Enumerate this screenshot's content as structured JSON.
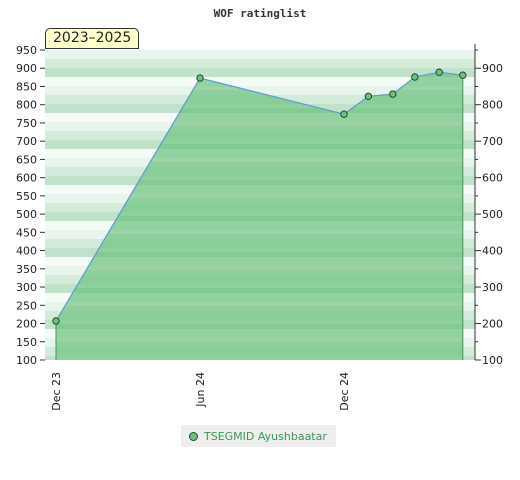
{
  "chart_data": {
    "type": "area",
    "title": "WOF ratinglist",
    "period_label": "2023–2025",
    "x_tick_labels": [
      "Dec 23",
      "Jun 24",
      "Dec 24"
    ],
    "ylim": [
      100,
      950
    ],
    "y_ticks_left": [
      100,
      150,
      200,
      250,
      300,
      350,
      400,
      450,
      500,
      550,
      600,
      650,
      700,
      750,
      800,
      850,
      900,
      950
    ],
    "y_ticks_right": [
      100,
      200,
      300,
      400,
      500,
      600,
      700,
      800,
      900
    ],
    "series": [
      {
        "name": "TSEGMID Ayushbaatar",
        "x": [
          "2023-12-01",
          "2024-06-01",
          "2024-12-01",
          "2025-01-01",
          "2025-02-01",
          "2025-03-01",
          "2025-04-01",
          "2025-05-01"
        ],
        "values": [
          207,
          873,
          774,
          823,
          829,
          876,
          889,
          881
        ]
      }
    ],
    "legend_position": "bottom-center",
    "grid": "banded",
    "colors": {
      "line": "#5b9bd5",
      "fill": "#6cc080",
      "marker": "#6cc080",
      "marker_stroke": "#1f4d2a",
      "legend_text": "#3a9a4e",
      "badge_background": "#ffffcc"
    }
  }
}
